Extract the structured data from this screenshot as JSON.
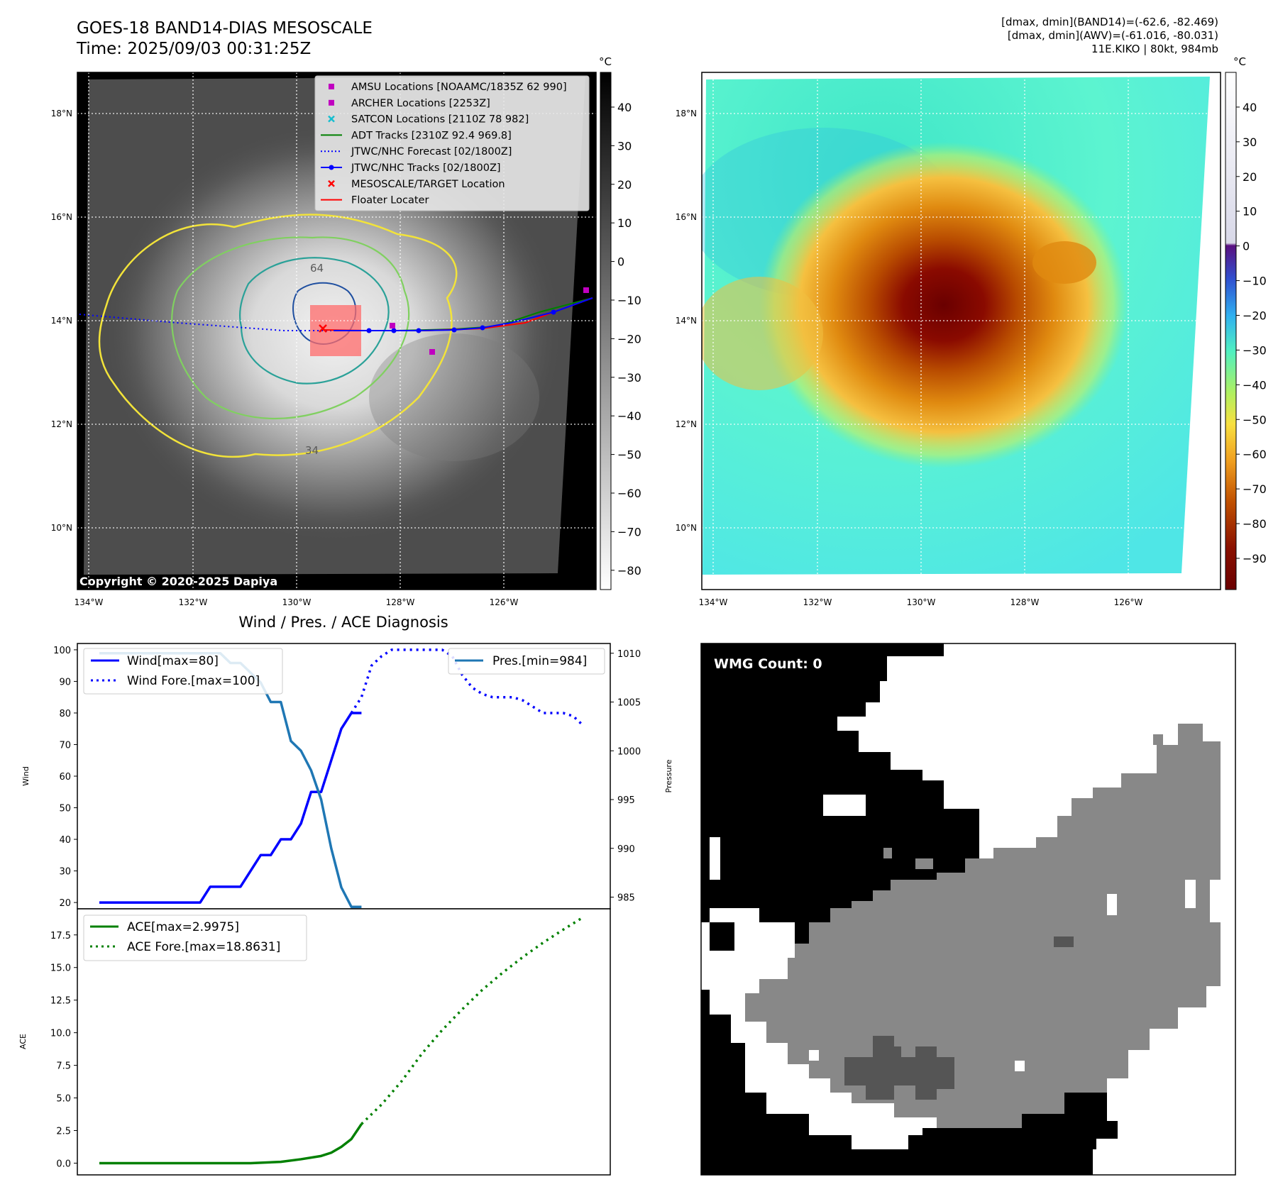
{
  "header": {
    "title_line1": "GOES-18 BAND14-DIAS MESOSCALE",
    "title_line2": "Time: 2025/09/03 00:31:25Z",
    "info_line1": "[dmax, dmin](BAND14)=(-62.6, -82.469)",
    "info_line2": "[dmax, dmin](AWV)=(-61.016, -80.031)",
    "info_line3": "11E.KIKO | 80kt, 984mb"
  },
  "map": {
    "lat_labels": [
      "18°N",
      "16°N",
      "14°N",
      "12°N",
      "10°N"
    ],
    "lon_labels": [
      "134°W",
      "132°W",
      "130°W",
      "128°W",
      "126°W"
    ],
    "copyright": "Copyright © 2020-2025 Dapiya",
    "contour_labels": [
      "64",
      "34"
    ],
    "legend": [
      {
        "label": "AMSU Locations [NOAAMC/1835Z 62 990]",
        "marker": "square",
        "color": "#c000c0"
      },
      {
        "label": "ARCHER Locations [2253Z]",
        "marker": "square",
        "color": "#c000c0"
      },
      {
        "label": "SATCON Locations [2110Z 78 982]",
        "marker": "x",
        "color": "#17becf"
      },
      {
        "label": "ADT Tracks [2310Z 92.4 969.8]",
        "marker": "line",
        "color": "#008000"
      },
      {
        "label": "JTWC/NHC Forecast [02/1800Z]",
        "marker": "dotted",
        "color": "#0000ff"
      },
      {
        "label": "JTWC/NHC Tracks [02/1800Z]",
        "marker": "line-dot",
        "color": "#0000ff"
      },
      {
        "label": "MESOSCALE/TARGET Location",
        "marker": "x",
        "color": "#ff0000"
      },
      {
        "label": "Floater Locater",
        "marker": "line",
        "color": "#ff0000"
      }
    ]
  },
  "colorbar_ir": {
    "unit": "°C",
    "ticks": [
      "40",
      "30",
      "20",
      "10",
      "0",
      "−10",
      "−20",
      "−30",
      "−40",
      "−50",
      "−60",
      "−70",
      "−80"
    ],
    "tick_values": [
      40,
      30,
      20,
      10,
      0,
      -10,
      -20,
      -30,
      -40,
      -50,
      -60,
      -70,
      -80
    ],
    "range": [
      49,
      -85
    ]
  },
  "colorbar_wv": {
    "unit": "°C",
    "ticks": [
      "40",
      "30",
      "20",
      "10",
      "0",
      "−10",
      "−20",
      "−30",
      "−40",
      "−50",
      "−60",
      "−70",
      "−80",
      "−90"
    ],
    "tick_values": [
      40,
      30,
      20,
      10,
      0,
      -10,
      -20,
      -30,
      -40,
      -50,
      -60,
      -70,
      -80,
      -90
    ],
    "range": [
      50,
      -99
    ]
  },
  "diagnosis": {
    "title": "Wind / Pres. / ACE Diagnosis",
    "wind_ylabel": "Wind",
    "pres_ylabel": "Pressure",
    "ace_ylabel": "ACE",
    "wind_ticks": [
      "100",
      "90",
      "80",
      "70",
      "60",
      "50",
      "40",
      "30",
      "20"
    ],
    "pres_ticks": [
      "1010",
      "1005",
      "1000",
      "995",
      "990",
      "985"
    ],
    "ace_ticks": [
      "17.5",
      "15.0",
      "12.5",
      "10.0",
      "7.5",
      "5.0",
      "2.5",
      "0.0"
    ],
    "legend_wind": "Wind[max=80]",
    "legend_wind_fore": "Wind Fore.[max=100]",
    "legend_pres": "Pres.[min=984]",
    "legend_ace": "ACE[max=2.9975]",
    "legend_ace_fore": "ACE Fore.[max=18.8631]",
    "colors": {
      "wind": "#0000ff",
      "pressure": "#1f77b4",
      "ace": "#008000"
    }
  },
  "chart_data": [
    {
      "type": "line",
      "title": "Wind / Pres. / ACE Diagnosis",
      "ylabel": "Wind",
      "ylim": [
        18,
        102
      ],
      "x": [
        0,
        1,
        2,
        3,
        4,
        5,
        6,
        7,
        8,
        9,
        10,
        11,
        12,
        13,
        14,
        15,
        16,
        17,
        18,
        19,
        20,
        21,
        22,
        23,
        24,
        25,
        26,
        27,
        28,
        29,
        30,
        31,
        32,
        33,
        34,
        35,
        36,
        37,
        38,
        39,
        40,
        41,
        42,
        43,
        44,
        45,
        46,
        47,
        48
      ],
      "series": [
        {
          "name": "Wind[max=80]",
          "style": "solid",
          "x": [
            0,
            1,
            2,
            3,
            4,
            5,
            6,
            7,
            8,
            9,
            10,
            11,
            12,
            13,
            14,
            15,
            16,
            17,
            18,
            19,
            20,
            21,
            22,
            23,
            24,
            25,
            26
          ],
          "values": [
            20,
            20,
            20,
            20,
            20,
            20,
            20,
            20,
            20,
            20,
            20,
            25,
            25,
            25,
            25,
            30,
            35,
            35,
            40,
            40,
            45,
            55,
            55,
            65,
            75,
            80,
            80
          ]
        },
        {
          "name": "Wind Fore.[max=100]",
          "style": "dotted",
          "x": [
            25,
            26,
            27,
            28,
            29,
            30,
            31,
            32,
            33,
            34,
            35,
            36,
            37,
            38,
            39,
            40,
            41,
            42,
            43,
            44,
            45,
            46,
            47,
            48
          ],
          "values": [
            80,
            85,
            95,
            98,
            100,
            100,
            100,
            100,
            100,
            100,
            98,
            92,
            88,
            86,
            85,
            85,
            85,
            84,
            82,
            80,
            80,
            80,
            79,
            76
          ]
        },
        {
          "name": "Pres.[min=984]",
          "style": "solid",
          "axis": "right",
          "ylim": [
            983.8,
            1011
          ],
          "x": [
            0,
            2,
            4,
            6,
            8,
            10,
            11,
            12,
            13,
            14,
            15,
            16,
            17,
            18,
            19,
            20,
            21,
            22,
            23,
            24,
            25,
            26
          ],
          "values": [
            1010,
            1010,
            1010,
            1010,
            1010,
            1010,
            1010,
            1010,
            1009,
            1009,
            1008,
            1007,
            1005,
            1005,
            1001,
            1000,
            998,
            995,
            990,
            986,
            984,
            984
          ]
        }
      ]
    },
    {
      "type": "line",
      "ylabel": "ACE",
      "ylim": [
        -0.9,
        19.5
      ],
      "series": [
        {
          "name": "ACE[max=2.9975]",
          "style": "solid",
          "x": [
            0,
            5,
            10,
            15,
            18,
            20,
            22,
            23,
            24,
            25,
            26
          ],
          "values": [
            0,
            0,
            0,
            0,
            0.1,
            0.3,
            0.55,
            0.8,
            1.25,
            1.85,
            3.0
          ]
        },
        {
          "name": "ACE Fore.[max=18.8631]",
          "style": "dotted",
          "x": [
            26,
            28,
            30,
            32,
            34,
            36,
            38,
            40,
            42,
            44,
            46,
            48
          ],
          "values": [
            3.0,
            4.5,
            6.3,
            8.4,
            10.2,
            11.8,
            13.3,
            14.6,
            15.8,
            16.9,
            17.9,
            18.86
          ]
        }
      ]
    }
  ],
  "wmg": {
    "label": "WMG Count: 0"
  }
}
